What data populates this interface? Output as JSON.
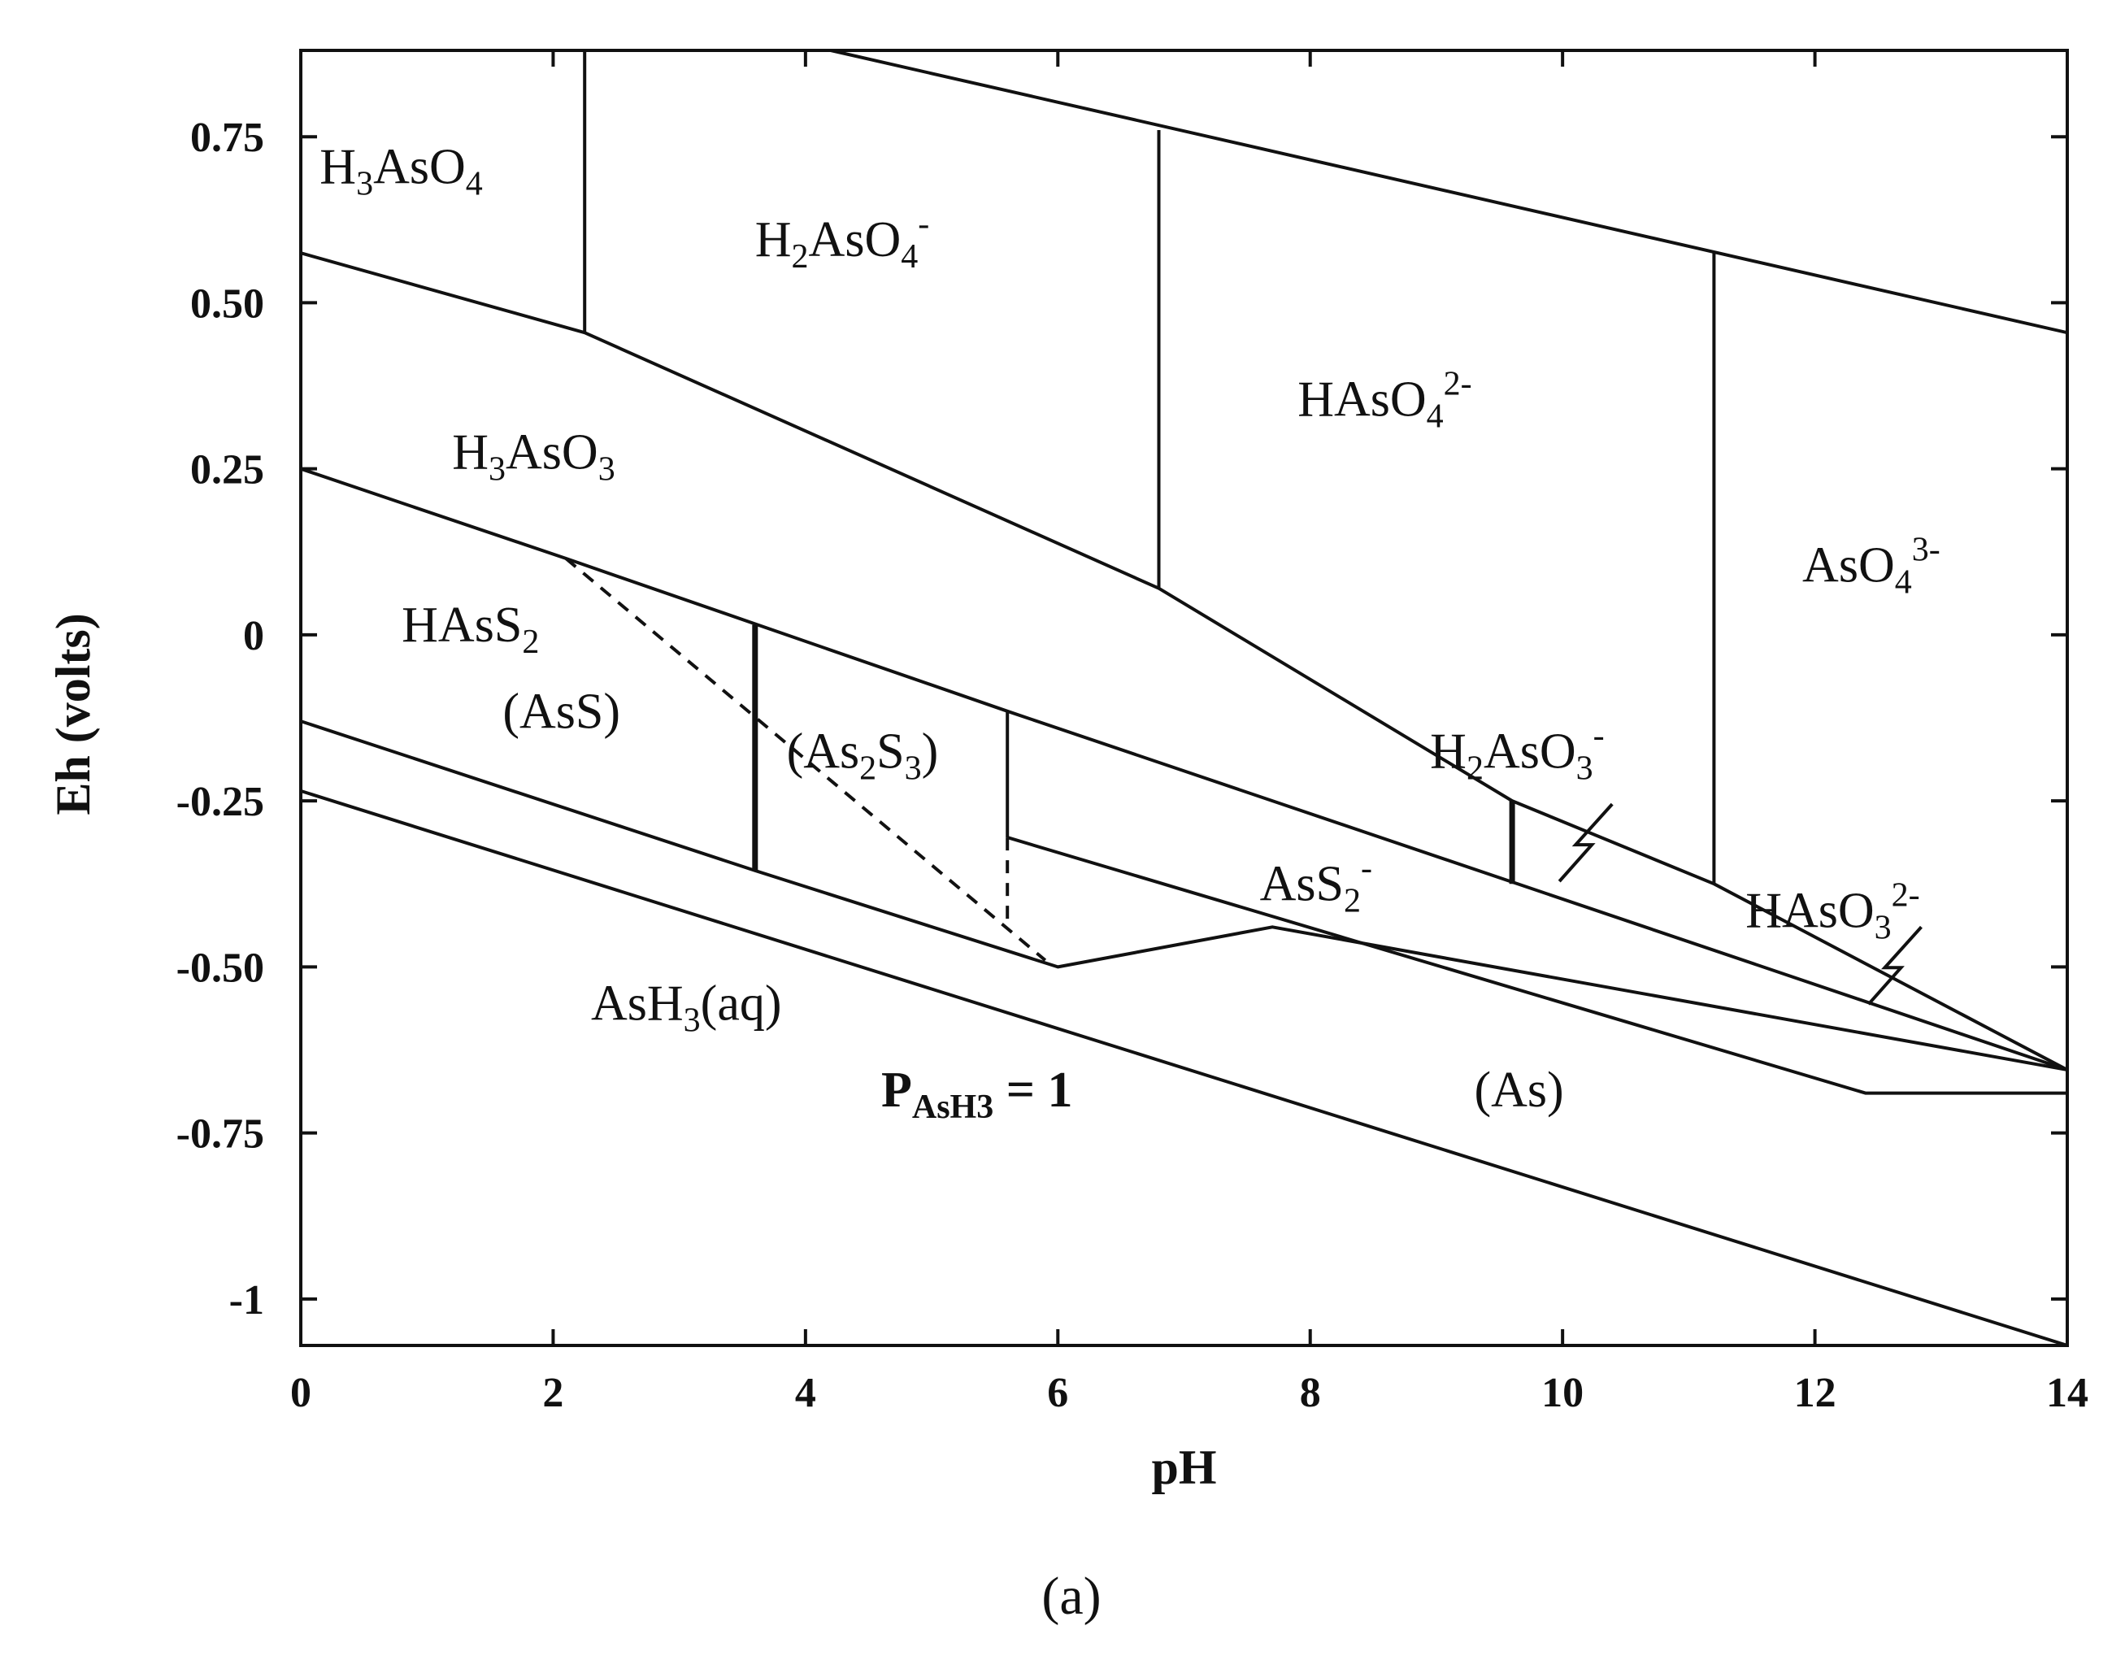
{
  "chart_data": {
    "type": "line",
    "title": "",
    "xlabel": "pH",
    "ylabel": "Eh (volts)",
    "xlim": [
      0,
      14
    ],
    "ylim": [
      -1.07,
      0.88
    ],
    "x_ticks": [
      "0",
      "2",
      "4",
      "6",
      "8",
      "10",
      "12",
      "14"
    ],
    "x_tick_values": [
      0,
      2,
      4,
      6,
      8,
      10,
      12,
      14
    ],
    "y_ticks": [
      "0.75",
      "0.50",
      "0.25",
      "0",
      "-0.25",
      "-0.50",
      "-0.75",
      "-1"
    ],
    "y_tick_values": [
      0.75,
      0.5,
      0.25,
      0,
      -0.25,
      -0.5,
      -0.75,
      -1
    ],
    "grid": false,
    "panel_label": "(a)",
    "line_color": "#111111",
    "series": [
      {
        "style": "solid",
        "points": [
          [
            4.2,
            0.88
          ],
          [
            14,
            0.455
          ]
        ]
      },
      {
        "style": "solid",
        "points": [
          [
            0,
            0.575
          ],
          [
            2.25,
            0.455
          ],
          [
            6.8,
            0.07
          ],
          [
            9.6,
            -0.25
          ],
          [
            11.2,
            -0.375
          ],
          [
            14,
            -0.655
          ]
        ]
      },
      {
        "style": "solid",
        "points": [
          [
            0,
            0.25
          ],
          [
            2.1,
            0.115
          ],
          [
            5.6,
            -0.115
          ],
          [
            14,
            -0.655
          ]
        ]
      },
      {
        "style": "solid",
        "points": [
          [
            0,
            -0.13
          ],
          [
            3.6,
            -0.355
          ],
          [
            6.0,
            -0.5
          ],
          [
            7.7,
            -0.44
          ],
          [
            14,
            -0.655
          ]
        ]
      },
      {
        "style": "solid",
        "points": [
          [
            5.6,
            -0.305
          ],
          [
            12.4,
            -0.69
          ],
          [
            14,
            -0.69
          ]
        ]
      },
      {
        "style": "solid",
        "points": [
          [
            0,
            -0.235
          ],
          [
            14,
            -1.07
          ]
        ]
      },
      {
        "style": "solid",
        "points": [
          [
            2.25,
            0.88
          ],
          [
            2.25,
            0.455
          ]
        ]
      },
      {
        "style": "solid",
        "points": [
          [
            6.8,
            0.76
          ],
          [
            6.8,
            0.07
          ]
        ]
      },
      {
        "style": "solid",
        "points": [
          [
            11.2,
            0.575
          ],
          [
            11.2,
            -0.375
          ]
        ]
      },
      {
        "style": "solid_thick",
        "points": [
          [
            3.6,
            0.015
          ],
          [
            3.6,
            -0.355
          ]
        ]
      },
      {
        "style": "solid",
        "points": [
          [
            5.6,
            -0.115
          ],
          [
            5.6,
            -0.305
          ]
        ]
      },
      {
        "style": "solid_thick",
        "points": [
          [
            9.6,
            -0.25
          ],
          [
            9.6,
            -0.375
          ]
        ]
      },
      {
        "style": "dashed",
        "points": [
          [
            2.1,
            0.115
          ],
          [
            5.9,
            -0.49
          ]
        ]
      },
      {
        "style": "dashed",
        "points": [
          [
            5.6,
            -0.305
          ],
          [
            5.6,
            -0.43
          ]
        ]
      }
    ],
    "squiggles": [
      [
        10.2,
        -0.31
      ],
      [
        12.65,
        -0.495
      ]
    ],
    "annotations": [
      {
        "parts": [
          {
            "t": "H"
          },
          {
            "t": "3",
            "sub": true
          },
          {
            "t": "AsO"
          },
          {
            "t": "4",
            "sub": true
          }
        ],
        "x": 0.15,
        "y": 0.68
      },
      {
        "parts": [
          {
            "t": "H"
          },
          {
            "t": "2",
            "sub": true
          },
          {
            "t": "AsO"
          },
          {
            "t": "4",
            "sub": true
          },
          {
            "t": "-",
            "sup": true
          }
        ],
        "x": 3.6,
        "y": 0.57
      },
      {
        "parts": [
          {
            "t": "HAsO"
          },
          {
            "t": "4",
            "sub": true
          },
          {
            "t": "2-",
            "sup": true
          }
        ],
        "x": 7.9,
        "y": 0.33
      },
      {
        "parts": [
          {
            "t": "H"
          },
          {
            "t": "3",
            "sub": true
          },
          {
            "t": "AsO"
          },
          {
            "t": "3",
            "sub": true
          }
        ],
        "x": 1.2,
        "y": 0.25
      },
      {
        "parts": [
          {
            "t": "AsO"
          },
          {
            "t": "4",
            "sub": true
          },
          {
            "t": "3-",
            "sup": true
          }
        ],
        "x": 11.9,
        "y": 0.08
      },
      {
        "parts": [
          {
            "t": "HAsS"
          },
          {
            "t": "2",
            "sub": true
          }
        ],
        "x": 0.8,
        "y": -0.01
      },
      {
        "parts": [
          {
            "t": "(AsS)"
          }
        ],
        "x": 1.6,
        "y": -0.14
      },
      {
        "parts": [
          {
            "t": "(As"
          },
          {
            "t": "2",
            "sub": true
          },
          {
            "t": "S"
          },
          {
            "t": "3",
            "sub": true
          },
          {
            "t": ")"
          }
        ],
        "x": 3.85,
        "y": -0.2
      },
      {
        "parts": [
          {
            "t": "H"
          },
          {
            "t": "2",
            "sub": true
          },
          {
            "t": "AsO"
          },
          {
            "t": "3",
            "sub": true
          },
          {
            "t": "-",
            "sup": true
          }
        ],
        "x": 8.95,
        "y": -0.2
      },
      {
        "parts": [
          {
            "t": "AsS"
          },
          {
            "t": "2",
            "sub": true
          },
          {
            "t": "-",
            "sup": true
          }
        ],
        "x": 7.6,
        "y": -0.4
      },
      {
        "parts": [
          {
            "t": "HAsO"
          },
          {
            "t": "3",
            "sub": true
          },
          {
            "t": "2-",
            "sup": true
          }
        ],
        "x": 11.45,
        "y": -0.44
      },
      {
        "parts": [
          {
            "t": "AsH"
          },
          {
            "t": "3",
            "sub": true
          },
          {
            "t": "(aq)"
          }
        ],
        "x": 2.3,
        "y": -0.58
      },
      {
        "parts": [
          {
            "t": "P",
            "bold": true
          },
          {
            "t": "AsH3",
            "sub": true,
            "bold": true
          },
          {
            "t": " = 1",
            "bold": true
          }
        ],
        "x": 4.6,
        "y": -0.71
      },
      {
        "parts": [
          {
            "t": "(As)"
          }
        ],
        "x": 9.3,
        "y": -0.71
      }
    ]
  }
}
